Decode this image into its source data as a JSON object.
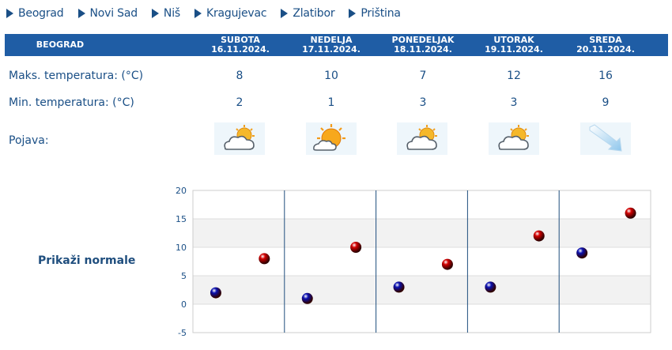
{
  "cities": [
    "Beograd",
    "Novi Sad",
    "Niš",
    "Kragujevac",
    "Zlatibor",
    "Priština"
  ],
  "table": {
    "city": "BEOGRAD",
    "days": [
      {
        "name": "SUBOTA",
        "date": "16.11.2024.",
        "max": "8",
        "min": "2",
        "icon": "partly-cloudy-icon"
      },
      {
        "name": "NEDELJA",
        "date": "17.11.2024.",
        "max": "10",
        "min": "1",
        "icon": "sun-cloud-icon"
      },
      {
        "name": "PONEDELJAK",
        "date": "18.11.2024.",
        "max": "7",
        "min": "3",
        "icon": "partly-cloudy-icon"
      },
      {
        "name": "UTORAK",
        "date": "19.11.2024.",
        "max": "12",
        "min": "3",
        "icon": "partly-cloudy-icon"
      },
      {
        "name": "SREDA",
        "date": "20.11.2024.",
        "max": "16",
        "min": "9",
        "icon": "wind-arrow-icon"
      }
    ],
    "labels": {
      "max": "Maks. temperatura: (°C)",
      "min": "Min. temperatura: (°C)",
      "phenomenon": "Pojava:"
    }
  },
  "normals_link": "Prikaži normale",
  "colors": {
    "header": "#1f5da5",
    "text": "#1a4f86",
    "max_point": "#d30000",
    "min_point": "#0a10b0"
  },
  "chart_data": {
    "type": "scatter",
    "categories": [
      "16.11.2024.",
      "17.11.2024.",
      "18.11.2024.",
      "19.11.2024.",
      "20.11.2024."
    ],
    "series": [
      {
        "values": [
          8,
          10,
          7,
          12,
          16
        ],
        "color": "#d30000"
      },
      {
        "values": [
          2,
          1,
          3,
          3,
          9
        ],
        "color": "#0a10b0"
      }
    ],
    "ylim": [
      -5,
      20
    ],
    "yticks": [
      "20",
      "15",
      "10",
      "5",
      "0",
      "-5"
    ],
    "grid": true,
    "banded": true
  }
}
